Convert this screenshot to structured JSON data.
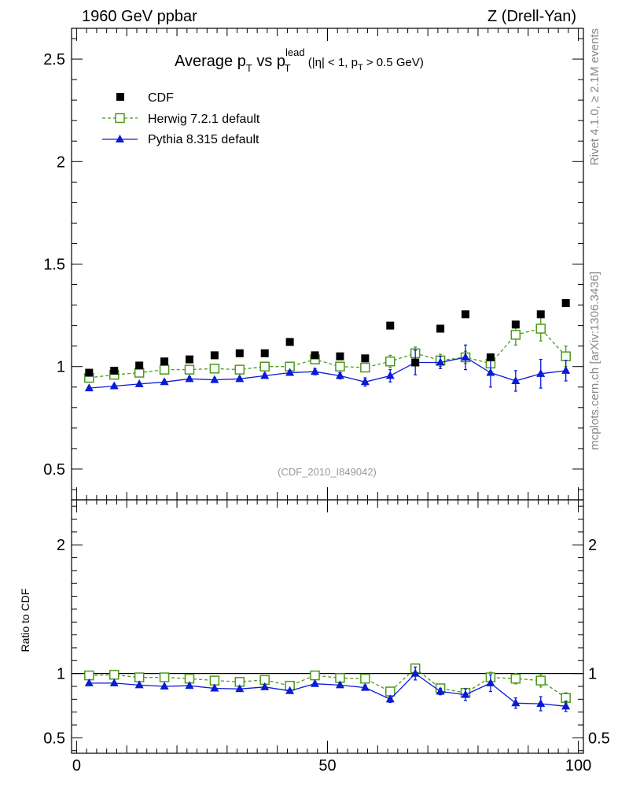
{
  "header": {
    "left_label": "1960 GeV ppbar",
    "right_label": "Z (Drell-Yan)"
  },
  "title": {
    "main_a": "Average p",
    "sub_t1": "T",
    "main_b": " vs p",
    "sup_lead": "lead",
    "sub_t2": "T",
    "cut_a": " (|η| < 1, p",
    "cut_sub": "T",
    "cut_b": " > 0.5 GeV)"
  },
  "side_labels": {
    "rivet": "Rivet 4.1.0, ≥ 2.1M events",
    "mcplots": "mcplots.cern.ch [arXiv:1306.3436]"
  },
  "analysis_id": "(CDF_2010_I849042)",
  "legend": {
    "cdf": "CDF",
    "herwig": "Herwig 7.2.1 default",
    "pythia": "Pythia 8.315 default"
  },
  "colors": {
    "cdf": "#000000",
    "herwig": "#4a9a1a",
    "pythia": "#0a1ad6"
  },
  "chart_data": [
    {
      "type": "scatter",
      "panel": "main",
      "title": "Average pT vs pT lead (|η| < 1, pT > 0.5 GeV)",
      "xlabel": "",
      "ylabel": "",
      "xlim": [
        -1,
        101
      ],
      "ylim": [
        0.35,
        2.65
      ],
      "x_ticks": [
        0,
        50,
        100
      ],
      "y_ticks": [
        0.5,
        1,
        1.5,
        2,
        2.5
      ],
      "y_tick_labels": [
        "0.5",
        "1",
        "1.5",
        "2",
        "2.5"
      ],
      "x": [
        2.5,
        7.5,
        12.5,
        17.5,
        22.5,
        27.5,
        32.5,
        37.5,
        42.5,
        47.5,
        52.5,
        57.5,
        62.5,
        67.5,
        72.5,
        77.5,
        82.5,
        87.5,
        92.5,
        97.5
      ],
      "series": [
        {
          "name": "CDF",
          "values": [
            0.97,
            0.98,
            1.005,
            1.025,
            1.035,
            1.055,
            1.065,
            1.065,
            1.12,
            1.055,
            1.05,
            1.04,
            1.2,
            1.02,
            1.185,
            1.255,
            1.045,
            1.205,
            1.255,
            1.31
          ]
        },
        {
          "name": "Herwig 7.2.1 default",
          "values": [
            0.945,
            0.96,
            0.97,
            0.985,
            0.985,
            0.99,
            0.985,
            1.0,
            1.0,
            1.035,
            1.0,
            0.995,
            1.025,
            1.065,
            1.03,
            1.045,
            1.015,
            1.155,
            1.185,
            1.05
          ],
          "errors": [
            0.01,
            0.01,
            0.01,
            0.01,
            0.01,
            0.01,
            0.01,
            0.012,
            0.012,
            0.015,
            0.015,
            0.02,
            0.03,
            0.03,
            0.03,
            0.03,
            0.04,
            0.05,
            0.06,
            0.05
          ]
        },
        {
          "name": "Pythia 8.315 default",
          "values": [
            0.895,
            0.905,
            0.915,
            0.925,
            0.94,
            0.935,
            0.94,
            0.955,
            0.97,
            0.975,
            0.955,
            0.925,
            0.955,
            1.02,
            1.02,
            1.045,
            0.97,
            0.93,
            0.965,
            0.98
          ],
          "errors": [
            0.008,
            0.008,
            0.008,
            0.01,
            0.01,
            0.01,
            0.01,
            0.012,
            0.012,
            0.015,
            0.015,
            0.02,
            0.03,
            0.06,
            0.03,
            0.06,
            0.07,
            0.05,
            0.07,
            0.05
          ]
        }
      ]
    },
    {
      "type": "line",
      "panel": "ratio",
      "xlabel": "",
      "ylabel": "Ratio to CDF",
      "xlim": [
        -1,
        101
      ],
      "ylim": [
        0.38,
        2.35
      ],
      "x_ticks": [
        0,
        50,
        100
      ],
      "x_tick_labels": [
        "0",
        "50",
        "100"
      ],
      "y_ticks": [
        0.5,
        1,
        2
      ],
      "y_tick_labels": [
        "0.5",
        "1",
        "2"
      ],
      "reference_line": 1,
      "x": [
        2.5,
        7.5,
        12.5,
        17.5,
        22.5,
        27.5,
        32.5,
        37.5,
        42.5,
        47.5,
        52.5,
        57.5,
        62.5,
        67.5,
        72.5,
        77.5,
        82.5,
        87.5,
        92.5,
        97.5
      ],
      "series": [
        {
          "name": "Herwig 7.2.1 default",
          "values": [
            0.985,
            0.99,
            0.97,
            0.97,
            0.96,
            0.945,
            0.935,
            0.95,
            0.905,
            0.985,
            0.965,
            0.96,
            0.86,
            1.04,
            0.885,
            0.85,
            0.97,
            0.96,
            0.945,
            0.81
          ],
          "errors": [
            0.01,
            0.01,
            0.01,
            0.01,
            0.01,
            0.01,
            0.01,
            0.012,
            0.012,
            0.015,
            0.015,
            0.02,
            0.025,
            0.03,
            0.025,
            0.025,
            0.04,
            0.04,
            0.05,
            0.04
          ]
        },
        {
          "name": "Pythia 8.315 default",
          "values": [
            0.925,
            0.925,
            0.91,
            0.9,
            0.905,
            0.885,
            0.88,
            0.895,
            0.865,
            0.92,
            0.91,
            0.89,
            0.8,
            1.0,
            0.86,
            0.835,
            0.925,
            0.77,
            0.765,
            0.745
          ],
          "errors": [
            0.008,
            0.008,
            0.008,
            0.01,
            0.01,
            0.01,
            0.01,
            0.012,
            0.012,
            0.015,
            0.015,
            0.02,
            0.025,
            0.05,
            0.025,
            0.045,
            0.065,
            0.04,
            0.055,
            0.04
          ]
        }
      ]
    }
  ]
}
